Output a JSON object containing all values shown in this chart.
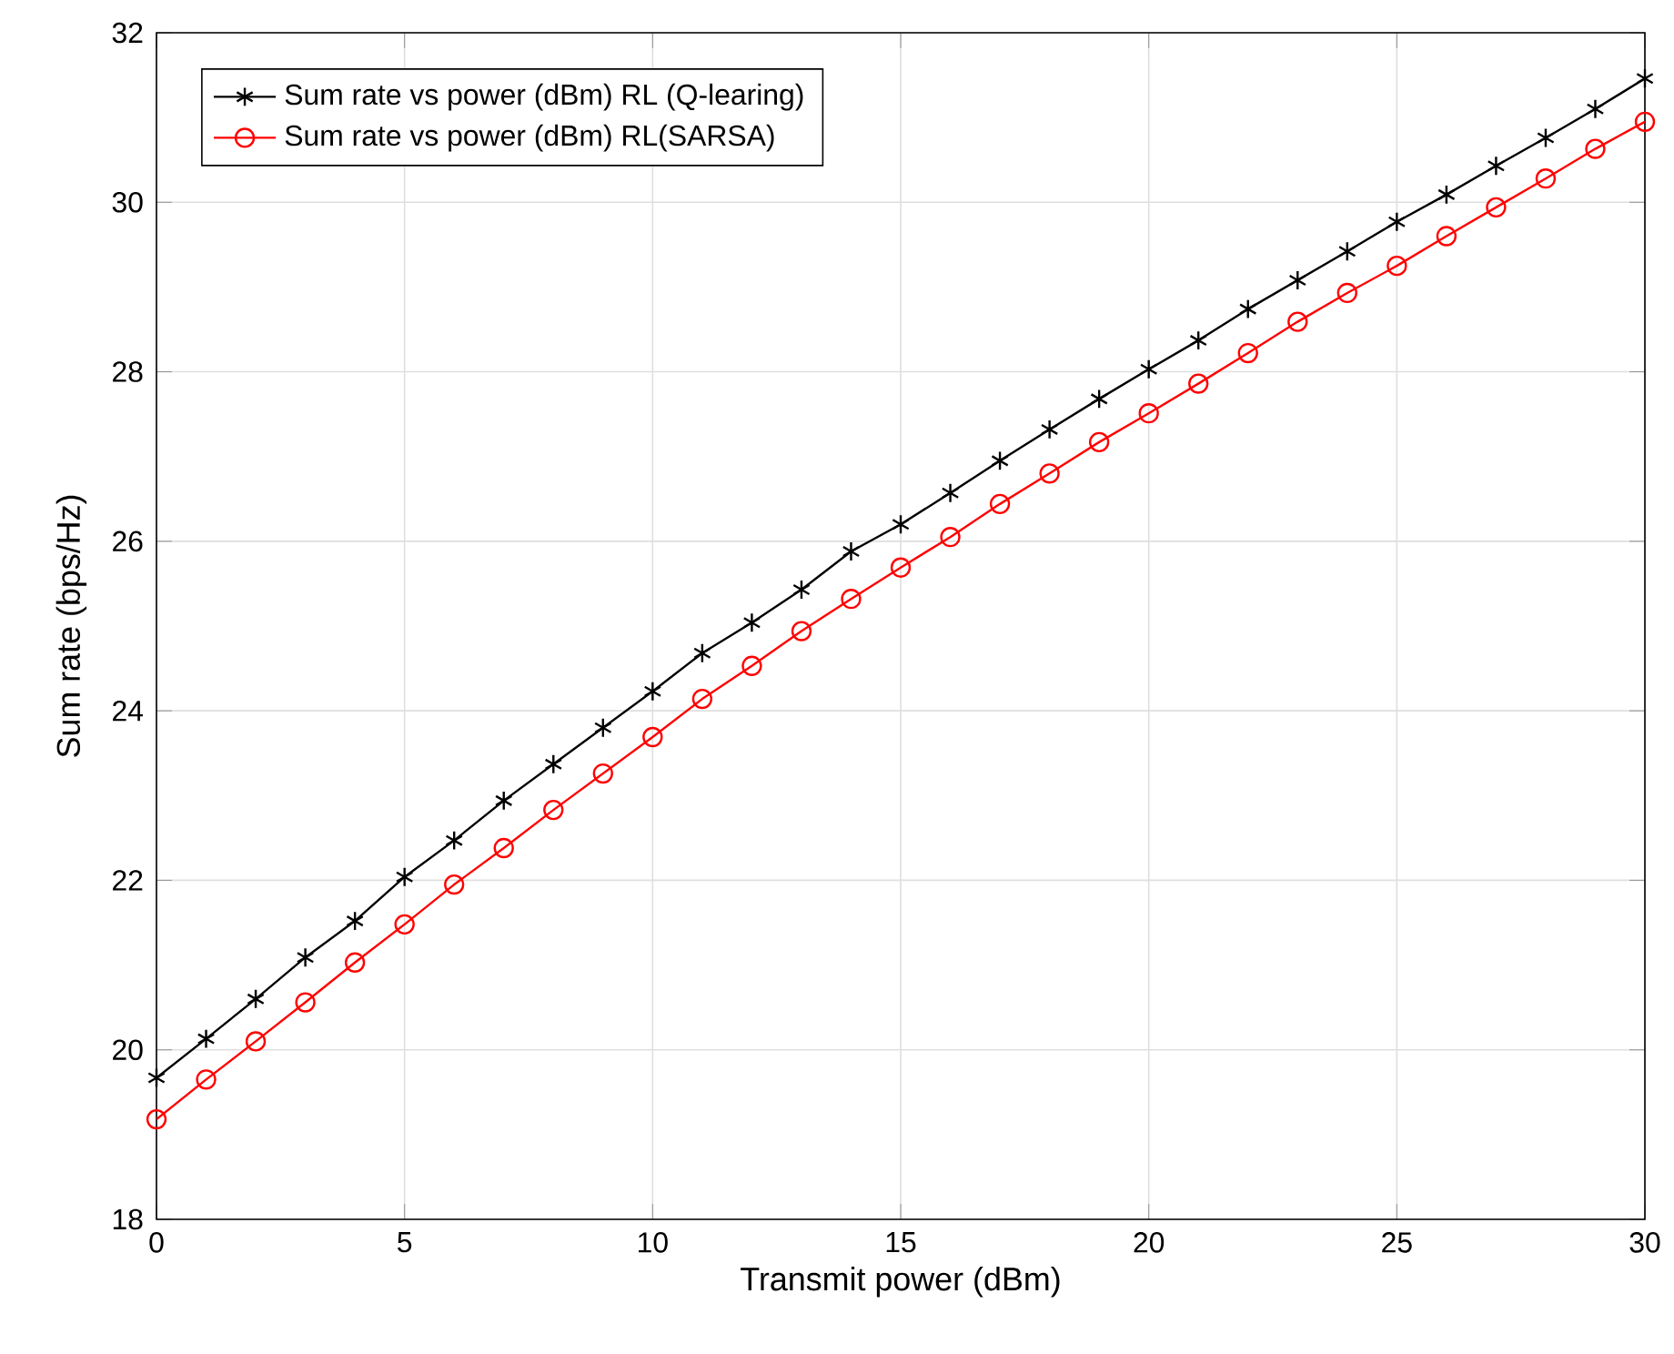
{
  "chart_data": {
    "type": "line",
    "xlabel": "Transmit power (dBm)",
    "ylabel": "Sum rate (bps/Hz)",
    "x": [
      0,
      1,
      2,
      3,
      4,
      5,
      6,
      7,
      8,
      9,
      10,
      11,
      12,
      13,
      14,
      15,
      16,
      17,
      18,
      19,
      20,
      21,
      22,
      23,
      24,
      25,
      26,
      27,
      28,
      29,
      30
    ],
    "series": [
      {
        "name": "Sum rate vs power (dBm) RL (Q-learing)",
        "color": "#000000",
        "marker": "cross",
        "values": [
          19.67,
          20.13,
          20.6,
          21.09,
          21.52,
          22.04,
          22.47,
          22.94,
          23.37,
          23.8,
          24.23,
          24.68,
          25.04,
          25.43,
          25.88,
          26.2,
          26.57,
          26.95,
          27.32,
          27.68,
          28.03,
          28.37,
          28.74,
          29.08,
          29.42,
          29.77,
          30.09,
          30.43,
          30.76,
          31.1,
          31.46
        ]
      },
      {
        "name": "Sum rate vs power (dBm) RL(SARSA)",
        "color": "#ff0000",
        "marker": "circle",
        "values": [
          19.18,
          19.65,
          20.1,
          20.56,
          21.03,
          21.48,
          21.95,
          22.38,
          22.83,
          23.26,
          23.69,
          24.14,
          24.53,
          24.94,
          25.32,
          25.69,
          26.05,
          26.44,
          26.8,
          27.17,
          27.51,
          27.86,
          28.22,
          28.59,
          28.93,
          29.25,
          29.6,
          29.94,
          30.28,
          30.63,
          30.95
        ]
      }
    ],
    "xlim": [
      0,
      30
    ],
    "ylim": [
      18,
      32
    ],
    "xticks": [
      0,
      5,
      10,
      15,
      20,
      25,
      30
    ],
    "yticks": [
      18,
      20,
      22,
      24,
      26,
      28,
      30,
      32
    ],
    "grid": true,
    "legend": "top left",
    "line_style": "solid"
  }
}
